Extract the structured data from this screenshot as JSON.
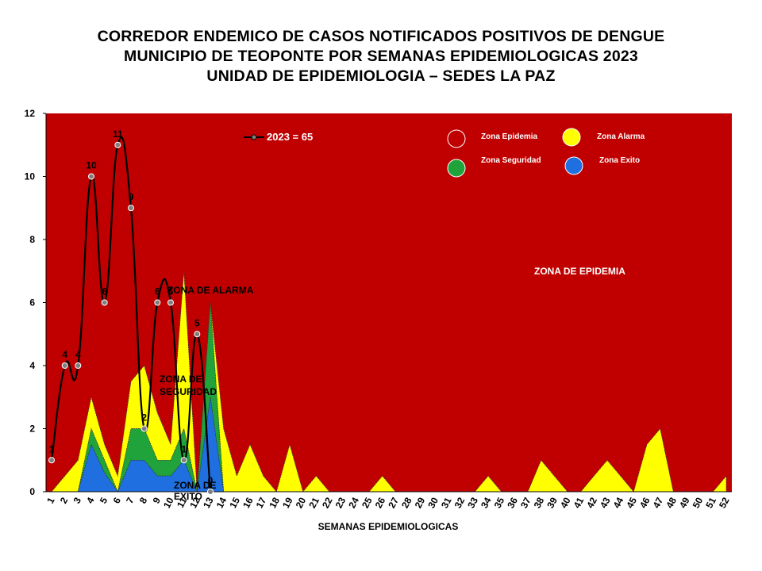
{
  "chart_data": {
    "type": "area",
    "title_lines": [
      "CORREDOR ENDEMICO DE CASOS NOTIFICADOS POSITIVOS DE DENGUE",
      "MUNICIPIO DE TEOPONTE  POR SEMANAS EPIDEMIOLOGICAS 2023",
      "UNIDAD DE EPIDEMIOLOGIA – SEDES LA PAZ"
    ],
    "xlabel": "SEMANAS EPIDEMIOLOGICAS",
    "ylabel": "",
    "ylim": [
      0,
      12
    ],
    "yticks": [
      "0",
      "2",
      "4",
      "6",
      "8",
      "10",
      "12"
    ],
    "x": [
      "1",
      "2",
      "3",
      "4",
      "5",
      "6",
      "7",
      "8",
      "9",
      "10",
      "11",
      "12",
      "13",
      "14",
      "15",
      "16",
      "17",
      "18",
      "19",
      "20",
      "21",
      "22",
      "23",
      "24",
      "25",
      "26",
      "27",
      "28",
      "29",
      "30",
      "31",
      "32",
      "33",
      "34",
      "35",
      "36",
      "37",
      "38",
      "39",
      "40",
      "41",
      "42",
      "43",
      "44",
      "45",
      "46",
      "47",
      "48",
      "49",
      "50",
      "51",
      "52"
    ],
    "zones": {
      "exito": [
        0,
        0,
        0,
        1.5,
        0.6,
        0,
        1,
        1,
        0.5,
        0.5,
        1,
        0,
        3,
        0,
        0,
        0,
        0,
        0,
        0,
        0,
        0,
        0,
        0,
        0,
        0,
        0,
        0,
        0,
        0,
        0,
        0,
        0,
        0,
        0,
        0,
        0,
        0,
        0,
        0,
        0,
        0,
        0,
        0,
        0,
        0,
        0,
        0,
        0,
        0,
        0,
        0,
        0
      ],
      "seguridad": [
        0,
        0,
        0,
        2,
        1,
        0,
        2,
        2,
        1,
        1,
        2,
        0,
        6,
        0,
        0,
        0,
        0,
        0,
        0,
        0,
        0,
        0,
        0,
        0,
        0,
        0,
        0,
        0,
        0,
        0,
        0,
        0,
        0,
        0,
        0,
        0,
        0,
        0,
        0,
        0,
        0,
        0,
        0,
        0,
        0,
        0,
        0,
        0,
        0,
        0,
        0,
        0
      ],
      "alarma": [
        0,
        0.5,
        1,
        3,
        1.5,
        0.5,
        3.5,
        4,
        2.5,
        1.5,
        7,
        0,
        6,
        2,
        0.5,
        1.5,
        0.5,
        0,
        1.5,
        0,
        0.5,
        0,
        0,
        0,
        0,
        0.5,
        0,
        0,
        0,
        0,
        0,
        0,
        0,
        0.5,
        0,
        0,
        0,
        1,
        0.5,
        0,
        0,
        0.5,
        1,
        0.5,
        0,
        1.5,
        2,
        0,
        0,
        0,
        0,
        0.5
      ]
    },
    "series": [
      {
        "name": "2023 = 65",
        "x": [
          "1",
          "2",
          "3",
          "4",
          "5",
          "6",
          "7",
          "8",
          "9",
          "10",
          "11",
          "12",
          "13"
        ],
        "values": [
          1,
          4,
          4,
          10,
          6,
          11,
          9,
          2,
          6,
          6,
          1,
          5,
          0
        ],
        "labels": [
          "1",
          "4",
          "4",
          "10",
          "6",
          "11",
          "9",
          "2",
          "6",
          "6",
          "1",
          "5",
          "0"
        ]
      }
    ],
    "legend": {
      "placement": "top-right",
      "items": [
        {
          "label": "Zona Epidemia",
          "color": "#c00000"
        },
        {
          "label": "Zona Alarma",
          "color": "#ffff00"
        },
        {
          "label": "Zona Seguridad",
          "color": "#1fa33a"
        },
        {
          "label": "Zona Exito",
          "color": "#1f6fe0"
        }
      ]
    },
    "annotations": {
      "epidemia": "ZONA DE EPIDEMIA",
      "alarma": "ZONA DE ALARMA",
      "seguridad": [
        "ZONA DE",
        "SEGURIDAD"
      ],
      "exito": [
        "ZONA DE",
        "EXITO"
      ]
    },
    "colors": {
      "epidemia": "#c00000",
      "alarma": "#ffff00",
      "seguridad": "#1fa33a",
      "exito": "#1f6fe0",
      "line": "#000000",
      "marker": "#7f7f7f"
    }
  }
}
